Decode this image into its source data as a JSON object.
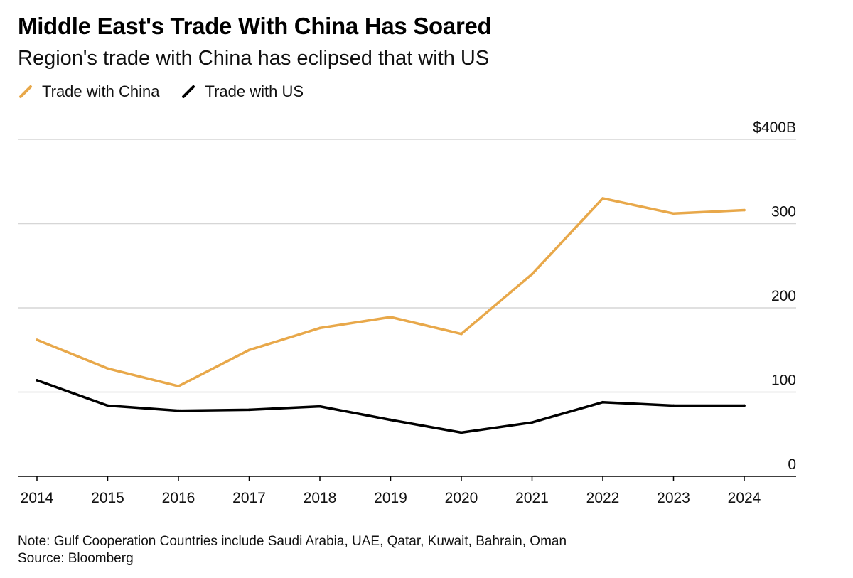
{
  "header": {
    "title": "Middle East's Trade With China Has Soared",
    "subtitle": "Region's trade with China has eclipsed that with US"
  },
  "legend": {
    "items": [
      {
        "label": "Trade with China",
        "color": "#e8a84a"
      },
      {
        "label": "Trade with US",
        "color": "#000000"
      }
    ]
  },
  "footer": {
    "note": "Note: Gulf Cooperation Countries include Saudi Arabia, UAE, Qatar, Kuwait, Bahrain, Oman",
    "source": "Source: Bloomberg"
  },
  "chart_data": {
    "type": "line",
    "title": "Middle East's Trade With China Has Soared",
    "subtitle": "Region's trade with China has eclipsed that with US",
    "x": [
      "2014",
      "2015",
      "2016",
      "2017",
      "2018",
      "2019",
      "2020",
      "2021",
      "2022",
      "2023",
      "2024"
    ],
    "series": [
      {
        "name": "Trade with China",
        "color": "#e8a84a",
        "values": [
          162,
          128,
          107,
          150,
          176,
          189,
          169,
          240,
          330,
          312,
          316
        ]
      },
      {
        "name": "Trade with US",
        "color": "#000000",
        "values": [
          114,
          84,
          78,
          79,
          83,
          67,
          52,
          64,
          88,
          84,
          84
        ]
      }
    ],
    "y_ticks": [
      {
        "value": 0,
        "label": "0"
      },
      {
        "value": 100,
        "label": "100"
      },
      {
        "value": 200,
        "label": "200"
      },
      {
        "value": 300,
        "label": "300"
      },
      {
        "value": 400,
        "label": "$400B"
      }
    ],
    "ylim": [
      0,
      400
    ],
    "xlabel": "",
    "ylabel": "",
    "grid": true,
    "legend_position": "top-left",
    "axis_side": "right"
  }
}
